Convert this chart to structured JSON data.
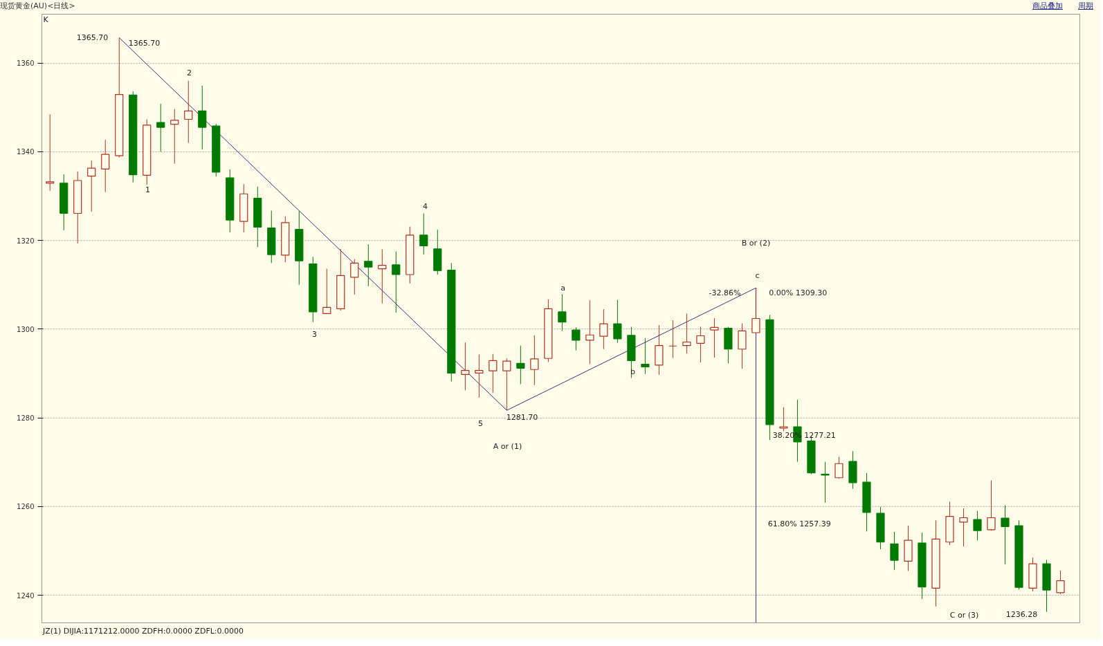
{
  "chart_data": {
    "type": "candlestick",
    "title": "现货黄金(AU)<日线>",
    "categories": [
      null,
      null,
      null,
      null,
      null,
      null,
      null,
      null,
      null,
      null,
      null,
      null,
      null,
      null,
      null,
      null,
      null,
      null,
      null,
      null,
      null,
      null,
      null,
      null,
      null,
      null,
      null,
      null,
      null,
      null,
      null,
      null,
      null,
      null,
      null,
      null,
      null,
      null,
      null,
      null,
      null,
      null,
      null,
      null,
      null,
      null,
      null,
      null,
      null,
      null,
      null,
      null,
      null,
      null,
      null,
      null,
      null,
      null,
      null,
      null,
      null,
      null,
      null,
      null,
      null,
      null,
      null,
      null,
      null,
      null,
      null,
      null,
      null,
      null
    ],
    "ohlc": [
      [
        1332.9,
        1348.4,
        1331.2,
        1333.2
      ],
      [
        1332.9,
        1334.9,
        1322.3,
        1326.1
      ],
      [
        1326.1,
        1335.5,
        1319.3,
        1333.5
      ],
      [
        1334.5,
        1338.0,
        1326.5,
        1336.3
      ],
      [
        1336.1,
        1342.7,
        1330.9,
        1339.4
      ],
      [
        1339.1,
        1365.7,
        1338.7,
        1352.9
      ],
      [
        1352.8,
        1353.6,
        1333.1,
        1334.8
      ],
      [
        1334.7,
        1347.3,
        1332.6,
        1346.0
      ],
      [
        1346.6,
        1350.8,
        1340.0,
        1345.5
      ],
      [
        1346.2,
        1349.6,
        1337.3,
        1347.1
      ],
      [
        1347.3,
        1356.0,
        1342.0,
        1349.2
      ],
      [
        1349.2,
        1354.9,
        1340.5,
        1345.5
      ],
      [
        1345.8,
        1346.3,
        1334.4,
        1335.4
      ],
      [
        1334.1,
        1336.0,
        1321.8,
        1324.6
      ],
      [
        1324.3,
        1332.7,
        1321.8,
        1330.5
      ],
      [
        1329.5,
        1332.1,
        1318.5,
        1323.0
      ],
      [
        1322.8,
        1326.7,
        1314.9,
        1316.8
      ],
      [
        1316.7,
        1325.4,
        1315.1,
        1324.0
      ],
      [
        1322.5,
        1326.6,
        1310.0,
        1315.4
      ],
      [
        1314.7,
        1316.3,
        1301.6,
        1303.9
      ],
      [
        1303.5,
        1313.6,
        1303.4,
        1304.9
      ],
      [
        1304.6,
        1318.1,
        1304.2,
        1312.1
      ],
      [
        1311.7,
        1315.8,
        1307.8,
        1314.9
      ],
      [
        1315.3,
        1319.1,
        1309.7,
        1314.0
      ],
      [
        1313.6,
        1318.0,
        1305.8,
        1314.4
      ],
      [
        1314.5,
        1317.5,
        1303.7,
        1312.3
      ],
      [
        1312.3,
        1323.1,
        1310.3,
        1321.2
      ],
      [
        1321.2,
        1326.1,
        1316.8,
        1318.8
      ],
      [
        1318.1,
        1322.4,
        1312.3,
        1313.2
      ],
      [
        1313.3,
        1314.9,
        1288.2,
        1290.1
      ],
      [
        1289.8,
        1297.0,
        1286.2,
        1290.7
      ],
      [
        1290.1,
        1294.3,
        1284.6,
        1290.7
      ],
      [
        1290.6,
        1294.4,
        1285.7,
        1292.9
      ],
      [
        1290.6,
        1293.4,
        1281.7,
        1292.8
      ],
      [
        1292.3,
        1296.3,
        1287.6,
        1291.2
      ],
      [
        1290.9,
        1298.6,
        1287.4,
        1293.3
      ],
      [
        1293.4,
        1306.7,
        1292.6,
        1304.6
      ],
      [
        1303.9,
        1307.9,
        1299.6,
        1301.6
      ],
      [
        1299.8,
        1300.4,
        1295.2,
        1297.5
      ],
      [
        1297.5,
        1306.5,
        1292.1,
        1298.7
      ],
      [
        1298.4,
        1304.5,
        1295.5,
        1301.2
      ],
      [
        1301.2,
        1306.6,
        1296.9,
        1297.8
      ],
      [
        1298.6,
        1300.5,
        1289.0,
        1292.9
      ],
      [
        1292.1,
        1298.0,
        1289.9,
        1291.5
      ],
      [
        1291.9,
        1300.9,
        1289.7,
        1296.3
      ],
      [
        1296.2,
        1302.0,
        1293.5,
        1296.2
      ],
      [
        1296.3,
        1303.5,
        1294.5,
        1297.1
      ],
      [
        1296.8,
        1300.5,
        1292.5,
        1298.5
      ],
      [
        1299.8,
        1302.5,
        1293.6,
        1300.4
      ],
      [
        1300.2,
        1300.5,
        1292.3,
        1295.5
      ],
      [
        1295.5,
        1301.3,
        1291.1,
        1299.6
      ],
      [
        1299.2,
        1309.3,
        1299.1,
        1302.4
      ],
      [
        1302.1,
        1303.2,
        1275.0,
        1278.5
      ],
      [
        1277.7,
        1282.4,
        1277.0,
        1278.0
      ],
      [
        1278.0,
        1284.1,
        1270.1,
        1274.6
      ],
      [
        1274.8,
        1275.9,
        1267.3,
        1267.6
      ],
      [
        1267.3,
        1270.1,
        1260.9,
        1267.1
      ],
      [
        1266.5,
        1271.2,
        1266.3,
        1269.7
      ],
      [
        1270.2,
        1272.5,
        1264.0,
        1265.4
      ],
      [
        1265.5,
        1267.6,
        1254.4,
        1258.7
      ],
      [
        1258.5,
        1259.9,
        1250.4,
        1252.0
      ],
      [
        1251.6,
        1254.3,
        1245.7,
        1247.9
      ],
      [
        1247.7,
        1255.7,
        1245.5,
        1252.4
      ],
      [
        1251.8,
        1254.1,
        1239.2,
        1241.9
      ],
      [
        1241.6,
        1256.9,
        1237.5,
        1252.7
      ],
      [
        1252.0,
        1261.1,
        1251.3,
        1257.8
      ],
      [
        1256.5,
        1259.6,
        1251.0,
        1257.5
      ],
      [
        1257.1,
        1259.0,
        1252.4,
        1254.6
      ],
      [
        1254.8,
        1265.9,
        1254.6,
        1257.5
      ],
      [
        1257.4,
        1260.3,
        1247.0,
        1255.5
      ],
      [
        1255.7,
        1256.9,
        1241.3,
        1241.8
      ],
      [
        1241.6,
        1248.5,
        1240.9,
        1247.1
      ],
      [
        1247.1,
        1248.0,
        1236.28,
        1241.2
      ],
      [
        1240.6,
        1245.6,
        1240.3,
        1243.3
      ]
    ],
    "colors": [
      "#b03020",
      "#007a00",
      "#b03020",
      "#b03020",
      "#b03020",
      "#b03020",
      "#007a00",
      "#b03020",
      "#007a00",
      "#b03020",
      "#b03020",
      "#007a00",
      "#007a00",
      "#007a00",
      "#b03020",
      "#007a00",
      "#007a00",
      "#b03020",
      "#007a00",
      "#007a00",
      "#b03020",
      "#b03020",
      "#b03020",
      "#007a00",
      "#b03020",
      "#007a00",
      "#b03020",
      "#007a00",
      "#007a00",
      "#007a00",
      "#b03020",
      "#b03020",
      "#b03020",
      "#b03020",
      "#007a00",
      "#b03020",
      "#b03020",
      "#007a00",
      "#007a00",
      "#b03020",
      "#b03020",
      "#007a00",
      "#007a00",
      "#007a00",
      "#b03020",
      "#b03020",
      "#b03020",
      "#b03020",
      "#b03020",
      "#007a00",
      "#b03020",
      "#b03020",
      "#007a00",
      "#b03020",
      "#007a00",
      "#007a00",
      "#007a00",
      "#b03020",
      "#007a00",
      "#007a00",
      "#007a00",
      "#007a00",
      "#b03020",
      "#007a00",
      "#b03020",
      "#b03020",
      "#b03020",
      "#007a00",
      "#b03020",
      "#007a00",
      "#007a00",
      "#b03020",
      "#007a00",
      "#b03020"
    ],
    "series": [
      {
        "type": "line",
        "color": "#3c2f80",
        "values": [
          null,
          null,
          null,
          null,
          null,
          1365.7,
          null,
          null,
          null,
          null,
          null,
          null,
          null,
          null,
          null,
          null,
          null,
          null,
          null,
          null,
          null,
          null,
          null,
          null,
          null,
          null,
          null,
          null,
          null,
          null,
          null,
          null,
          null,
          1281.7,
          null,
          null,
          null,
          null,
          null,
          null,
          null,
          null,
          null,
          null,
          null,
          null,
          null,
          null,
          null,
          null,
          null,
          1309.3,
          null,
          null,
          null,
          null,
          null,
          null,
          null,
          null,
          null,
          null,
          null,
          null,
          null,
          null,
          null,
          null,
          null,
          null,
          null,
          null,
          null,
          null
        ]
      }
    ],
    "ylim": [
      1233.8,
      1371
    ],
    "yticks": [
      1240,
      1260,
      1280,
      1300,
      1320,
      1340,
      1360
    ],
    "grid": "y",
    "tick_labels": "y",
    "annotations": [
      "K",
      "商品叠加",
      "周期",
      "JZ(1) DIJIA:1171212.0000 ZDFH:0.0000 ZDFL:0.0000",
      "1365.70",
      "1365.70",
      "1",
      "2",
      "3",
      "4",
      "5",
      "1281.70",
      "A or (1)",
      "a",
      "b",
      "B or (2)",
      "c",
      "-32.86%",
      "0.00%    1309.30",
      "38.20%    1277.21",
      "61.80%    1257.39",
      "C or (3)",
      "1236.28"
    ]
  }
}
